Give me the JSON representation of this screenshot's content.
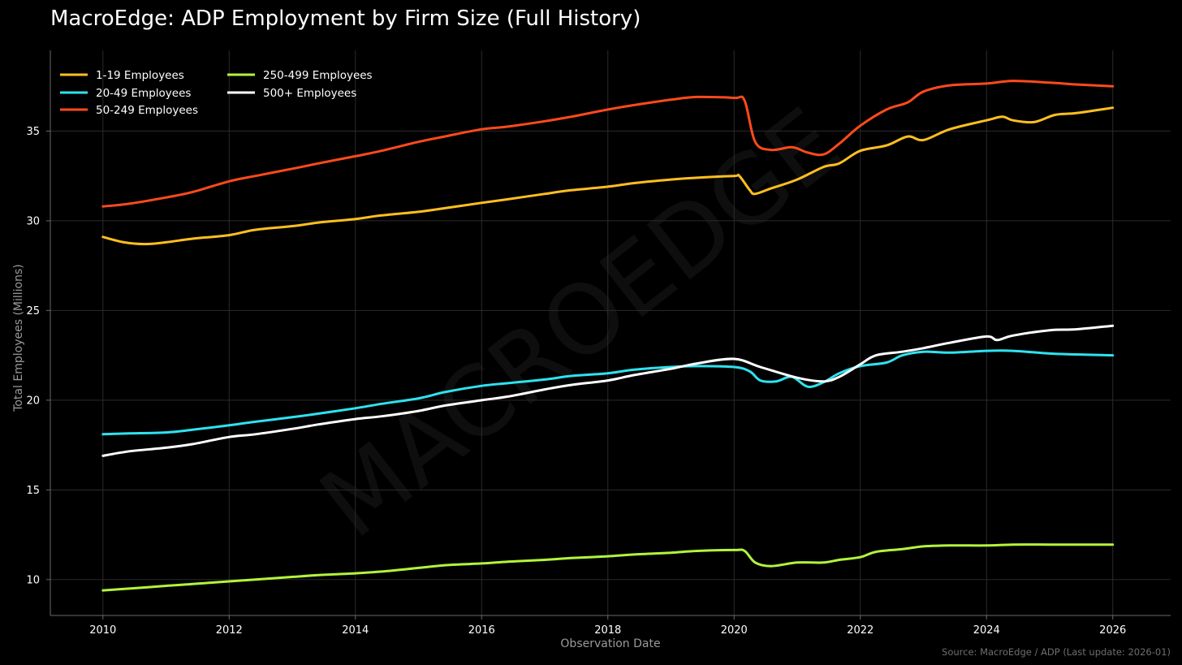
{
  "title": "MacroEdge: ADP Employment by Firm Size (Full History)",
  "source": "Source: MacroEdge / ADP (Last update: 2026-01)",
  "watermark": "MACROEDGE",
  "colors": {
    "background": "#000000",
    "grid": "#2b2b2b",
    "axis": "#6a6a6a"
  },
  "chart_data": {
    "type": "line",
    "xlabel": "Observation Date",
    "ylabel": "Total Employees (Millions)",
    "xlim": [
      "2009-03",
      "2026-12"
    ],
    "ylim": [
      8,
      39.5
    ],
    "xticks": [
      "2010",
      "2012",
      "2014",
      "2016",
      "2018",
      "2020",
      "2022",
      "2024",
      "2026"
    ],
    "yticks": [
      10,
      15,
      20,
      25,
      30,
      35
    ],
    "grid": true,
    "legend_position": "top-left",
    "series": [
      {
        "name": "1-19 Employees",
        "color": "#ffbf1f",
        "points": [
          [
            "2010-01",
            29.1
          ],
          [
            "2010-05",
            28.8
          ],
          [
            "2010-09",
            28.7
          ],
          [
            "2011-01",
            28.8
          ],
          [
            "2011-06",
            29.0
          ],
          [
            "2012-01",
            29.2
          ],
          [
            "2012-06",
            29.5
          ],
          [
            "2013-01",
            29.7
          ],
          [
            "2013-06",
            29.9
          ],
          [
            "2014-01",
            30.1
          ],
          [
            "2014-06",
            30.3
          ],
          [
            "2015-01",
            30.5
          ],
          [
            "2015-06",
            30.7
          ],
          [
            "2016-01",
            31.0
          ],
          [
            "2016-06",
            31.2
          ],
          [
            "2017-01",
            31.5
          ],
          [
            "2017-06",
            31.7
          ],
          [
            "2018-01",
            31.9
          ],
          [
            "2018-06",
            32.1
          ],
          [
            "2019-01",
            32.3
          ],
          [
            "2019-06",
            32.4
          ],
          [
            "2020-01",
            32.5
          ],
          [
            "2020-02",
            32.5
          ],
          [
            "2020-04",
            31.7
          ],
          [
            "2020-05",
            31.5
          ],
          [
            "2020-08",
            31.8
          ],
          [
            "2021-01",
            32.3
          ],
          [
            "2021-06",
            33.0
          ],
          [
            "2021-09",
            33.2
          ],
          [
            "2022-01",
            33.9
          ],
          [
            "2022-06",
            34.2
          ],
          [
            "2022-10",
            34.7
          ],
          [
            "2023-01",
            34.5
          ],
          [
            "2023-06",
            35.1
          ],
          [
            "2024-01",
            35.6
          ],
          [
            "2024-04",
            35.8
          ],
          [
            "2024-06",
            35.6
          ],
          [
            "2024-10",
            35.5
          ],
          [
            "2025-02",
            35.9
          ],
          [
            "2025-06",
            36.0
          ],
          [
            "2026-01",
            36.3
          ]
        ]
      },
      {
        "name": "20-49 Employees",
        "color": "#2de3ef",
        "points": [
          [
            "2010-01",
            18.1
          ],
          [
            "2010-06",
            18.15
          ],
          [
            "2011-01",
            18.2
          ],
          [
            "2011-06",
            18.35
          ],
          [
            "2012-01",
            18.6
          ],
          [
            "2012-06",
            18.8
          ],
          [
            "2013-01",
            19.05
          ],
          [
            "2013-06",
            19.25
          ],
          [
            "2014-01",
            19.55
          ],
          [
            "2014-06",
            19.8
          ],
          [
            "2015-01",
            20.1
          ],
          [
            "2015-06",
            20.45
          ],
          [
            "2016-01",
            20.8
          ],
          [
            "2016-06",
            20.95
          ],
          [
            "2017-01",
            21.15
          ],
          [
            "2017-06",
            21.35
          ],
          [
            "2018-01",
            21.5
          ],
          [
            "2018-06",
            21.7
          ],
          [
            "2019-01",
            21.85
          ],
          [
            "2019-06",
            21.9
          ],
          [
            "2020-01",
            21.85
          ],
          [
            "2020-04",
            21.6
          ],
          [
            "2020-06",
            21.1
          ],
          [
            "2020-09",
            21.05
          ],
          [
            "2020-12",
            21.3
          ],
          [
            "2021-03",
            20.75
          ],
          [
            "2021-06",
            21.0
          ],
          [
            "2021-09",
            21.5
          ],
          [
            "2022-01",
            21.9
          ],
          [
            "2022-06",
            22.1
          ],
          [
            "2022-09",
            22.5
          ],
          [
            "2023-01",
            22.7
          ],
          [
            "2023-06",
            22.65
          ],
          [
            "2024-01",
            22.75
          ],
          [
            "2024-06",
            22.75
          ],
          [
            "2025-01",
            22.6
          ],
          [
            "2025-06",
            22.55
          ],
          [
            "2026-01",
            22.5
          ]
        ]
      },
      {
        "name": "50-249 Employees",
        "color": "#ff4a1c",
        "points": [
          [
            "2010-01",
            30.8
          ],
          [
            "2010-06",
            30.95
          ],
          [
            "2011-01",
            31.3
          ],
          [
            "2011-06",
            31.6
          ],
          [
            "2012-01",
            32.2
          ],
          [
            "2012-06",
            32.5
          ],
          [
            "2013-01",
            32.9
          ],
          [
            "2013-06",
            33.2
          ],
          [
            "2014-01",
            33.6
          ],
          [
            "2014-06",
            33.9
          ],
          [
            "2015-01",
            34.4
          ],
          [
            "2015-06",
            34.7
          ],
          [
            "2016-01",
            35.1
          ],
          [
            "2016-06",
            35.25
          ],
          [
            "2017-01",
            35.55
          ],
          [
            "2017-06",
            35.8
          ],
          [
            "2018-01",
            36.2
          ],
          [
            "2018-06",
            36.45
          ],
          [
            "2019-01",
            36.75
          ],
          [
            "2019-06",
            36.9
          ],
          [
            "2020-01",
            36.85
          ],
          [
            "2020-03",
            36.7
          ],
          [
            "2020-05",
            34.4
          ],
          [
            "2020-08",
            33.95
          ],
          [
            "2020-12",
            34.1
          ],
          [
            "2021-03",
            33.8
          ],
          [
            "2021-06",
            33.7
          ],
          [
            "2021-09",
            34.3
          ],
          [
            "2022-01",
            35.3
          ],
          [
            "2022-06",
            36.2
          ],
          [
            "2022-10",
            36.6
          ],
          [
            "2023-01",
            37.2
          ],
          [
            "2023-06",
            37.55
          ],
          [
            "2024-01",
            37.65
          ],
          [
            "2024-06",
            37.8
          ],
          [
            "2025-01",
            37.7
          ],
          [
            "2025-06",
            37.6
          ],
          [
            "2026-01",
            37.5
          ]
        ]
      },
      {
        "name": "250-499 Employees",
        "color": "#b3f53b",
        "points": [
          [
            "2010-01",
            9.4
          ],
          [
            "2010-06",
            9.5
          ],
          [
            "2011-01",
            9.65
          ],
          [
            "2011-06",
            9.75
          ],
          [
            "2012-01",
            9.9
          ],
          [
            "2012-06",
            10.0
          ],
          [
            "2013-01",
            10.15
          ],
          [
            "2013-06",
            10.25
          ],
          [
            "2014-01",
            10.35
          ],
          [
            "2014-06",
            10.45
          ],
          [
            "2015-01",
            10.65
          ],
          [
            "2015-06",
            10.8
          ],
          [
            "2016-01",
            10.9
          ],
          [
            "2016-06",
            11.0
          ],
          [
            "2017-01",
            11.1
          ],
          [
            "2017-06",
            11.2
          ],
          [
            "2018-01",
            11.3
          ],
          [
            "2018-06",
            11.4
          ],
          [
            "2019-01",
            11.5
          ],
          [
            "2019-06",
            11.6
          ],
          [
            "2020-01",
            11.65
          ],
          [
            "2020-03",
            11.6
          ],
          [
            "2020-05",
            10.95
          ],
          [
            "2020-08",
            10.75
          ],
          [
            "2021-01",
            10.95
          ],
          [
            "2021-06",
            10.95
          ],
          [
            "2021-09",
            11.1
          ],
          [
            "2022-01",
            11.25
          ],
          [
            "2022-04",
            11.55
          ],
          [
            "2022-09",
            11.7
          ],
          [
            "2023-01",
            11.85
          ],
          [
            "2023-06",
            11.9
          ],
          [
            "2024-01",
            11.9
          ],
          [
            "2024-06",
            11.95
          ],
          [
            "2025-01",
            11.95
          ],
          [
            "2025-06",
            11.95
          ],
          [
            "2026-01",
            11.95
          ]
        ]
      },
      {
        "name": "500+ Employees",
        "color": "#ffffff",
        "points": [
          [
            "2010-01",
            16.9
          ],
          [
            "2010-06",
            17.15
          ],
          [
            "2011-01",
            17.35
          ],
          [
            "2011-06",
            17.55
          ],
          [
            "2012-01",
            17.95
          ],
          [
            "2012-06",
            18.1
          ],
          [
            "2013-01",
            18.4
          ],
          [
            "2013-06",
            18.65
          ],
          [
            "2014-01",
            18.95
          ],
          [
            "2014-06",
            19.1
          ],
          [
            "2015-01",
            19.4
          ],
          [
            "2015-06",
            19.7
          ],
          [
            "2016-01",
            20.0
          ],
          [
            "2016-06",
            20.2
          ],
          [
            "2017-01",
            20.6
          ],
          [
            "2017-06",
            20.85
          ],
          [
            "2018-01",
            21.1
          ],
          [
            "2018-06",
            21.4
          ],
          [
            "2019-01",
            21.75
          ],
          [
            "2019-06",
            22.05
          ],
          [
            "2020-01",
            22.3
          ],
          [
            "2020-06",
            21.85
          ],
          [
            "2021-01",
            21.25
          ],
          [
            "2021-06",
            21.05
          ],
          [
            "2021-09",
            21.3
          ],
          [
            "2022-01",
            22.0
          ],
          [
            "2022-04",
            22.5
          ],
          [
            "2022-09",
            22.7
          ],
          [
            "2023-01",
            22.9
          ],
          [
            "2023-06",
            23.2
          ],
          [
            "2024-01",
            23.55
          ],
          [
            "2024-03",
            23.35
          ],
          [
            "2024-06",
            23.6
          ],
          [
            "2025-01",
            23.9
          ],
          [
            "2025-06",
            23.95
          ],
          [
            "2026-01",
            24.15
          ]
        ]
      }
    ]
  }
}
